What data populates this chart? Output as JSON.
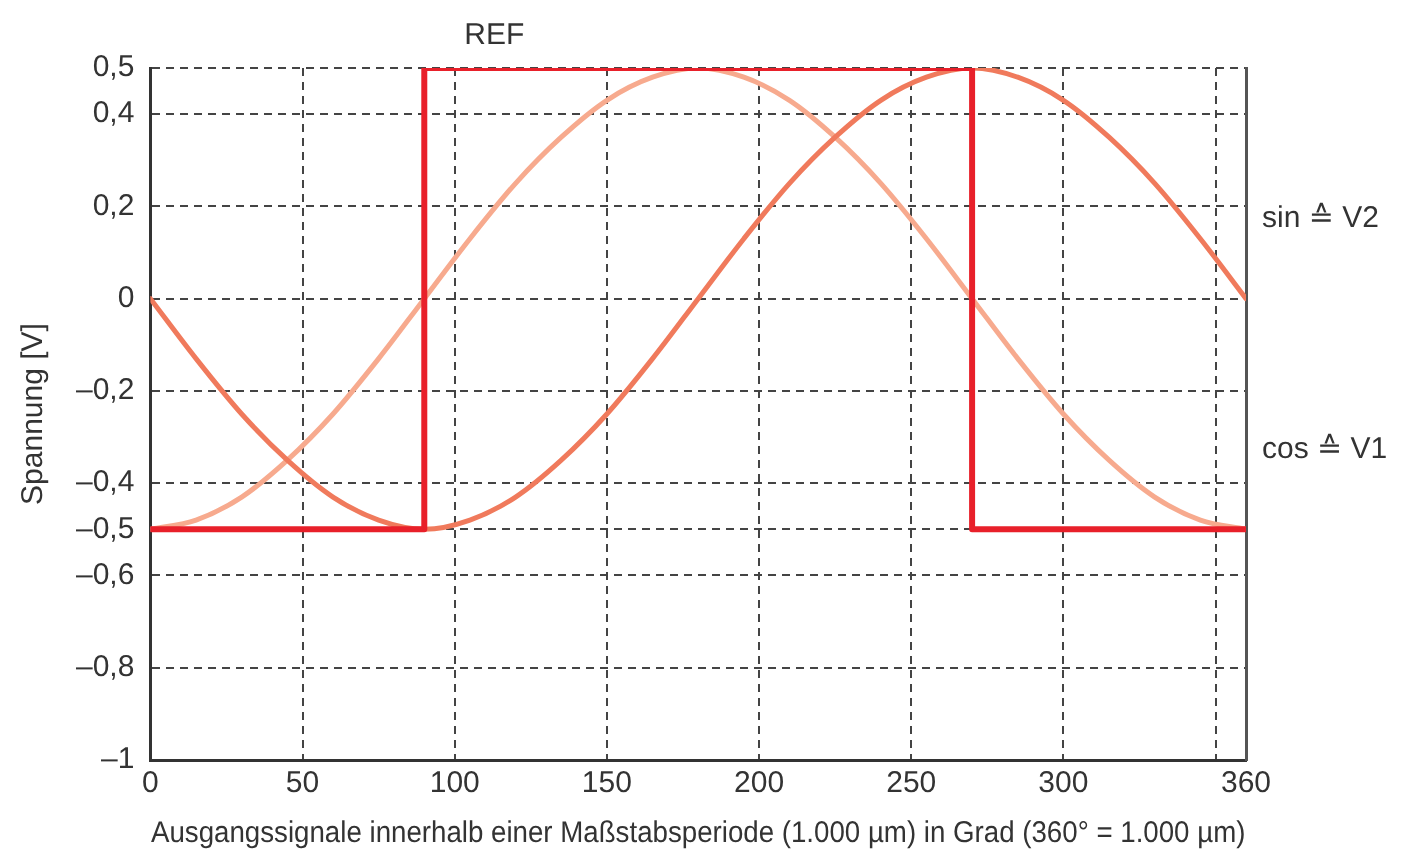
{
  "chart_data": {
    "type": "line",
    "xlabel": "Ausgangssignale innerhalb einer Maßstabsperiode (1.000 µm) in Grad (360° = 1.000 µm)",
    "ylabel": "Spannung [V]",
    "x": [
      0,
      15,
      30,
      45,
      60,
      75,
      90,
      105,
      120,
      135,
      150,
      165,
      180,
      195,
      210,
      225,
      240,
      255,
      270,
      285,
      300,
      315,
      330,
      345,
      360
    ],
    "series": [
      {
        "name": "REF",
        "color": "#e8202a",
        "x": [
          0,
          90,
          90,
          270,
          270,
          360
        ],
        "values": [
          -0.5,
          -0.5,
          0.5,
          0.5,
          -0.5,
          -0.5
        ]
      },
      {
        "name": "sin ≙ V2",
        "color": "#f07a5c",
        "values": [
          0,
          -0.13,
          -0.25,
          -0.35,
          -0.43,
          -0.48,
          -0.5,
          -0.48,
          -0.43,
          -0.35,
          -0.25,
          -0.13,
          0,
          0.13,
          0.25,
          0.35,
          0.43,
          0.48,
          0.5,
          0.48,
          0.43,
          0.35,
          0.25,
          0.13,
          0
        ]
      },
      {
        "name": "cos ≙ V1",
        "color": "#f7aa8e",
        "values": [
          -0.5,
          -0.48,
          -0.43,
          -0.35,
          -0.25,
          -0.13,
          0,
          0.13,
          0.25,
          0.35,
          0.43,
          0.48,
          0.5,
          0.48,
          0.43,
          0.35,
          0.25,
          0.13,
          0,
          -0.13,
          -0.25,
          -0.35,
          -0.43,
          -0.48,
          -0.5
        ]
      }
    ],
    "xlim": [
      0,
      360
    ],
    "xticks": [
      0,
      50,
      100,
      150,
      200,
      250,
      300,
      {
        "value": 350,
        "label": null
      },
      360
    ],
    "ylim": [
      -1,
      0.5
    ],
    "yticks": [
      {
        "value": 0.5,
        "label": "0,5"
      },
      {
        "value": 0.4,
        "label": "0,4"
      },
      {
        "value": 0.2,
        "label": "0,2"
      },
      0,
      {
        "value": -0.2,
        "label": "–0,2"
      },
      {
        "value": -0.4,
        "label": "–0,4"
      },
      {
        "value": -0.5,
        "label": "–0,5"
      },
      {
        "value": -0.6,
        "label": "–0,6"
      },
      {
        "value": -0.8,
        "label": "–0,8"
      },
      {
        "value": -1,
        "label": "–1"
      }
    ],
    "grid": true,
    "legend": false,
    "marker": "none",
    "line_style": "solid"
  }
}
